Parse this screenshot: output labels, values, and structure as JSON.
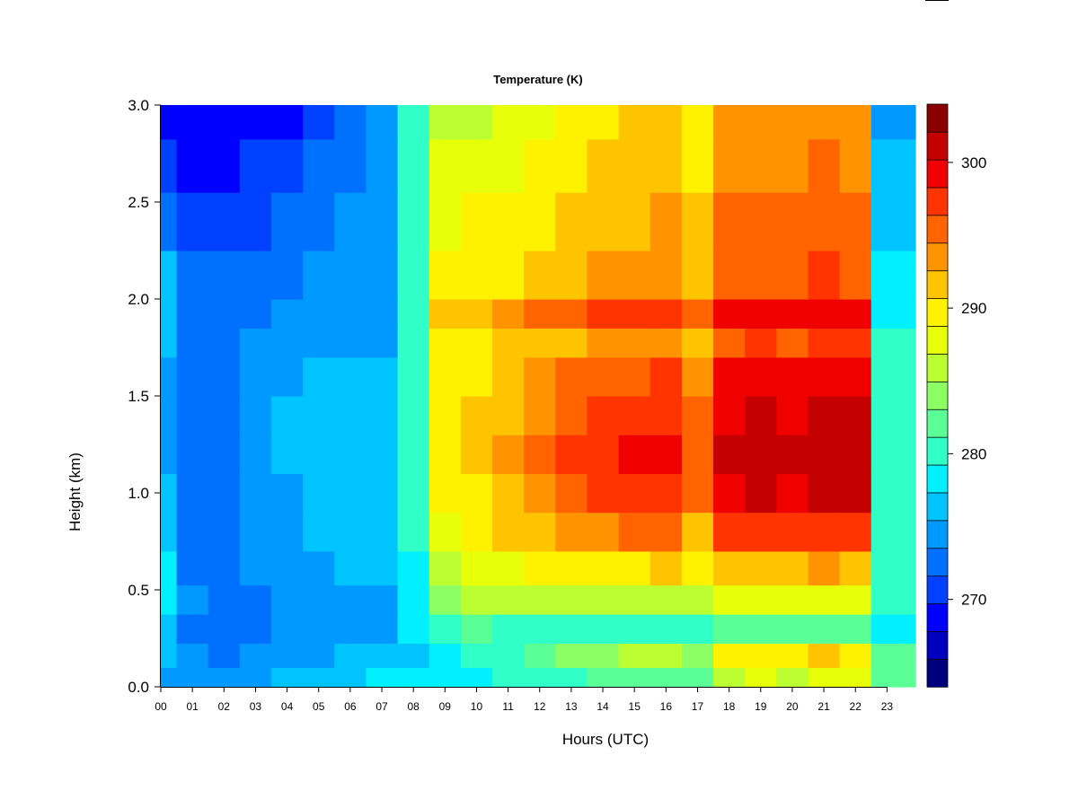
{
  "chart_data": {
    "type": "heatmap",
    "title": "Temperature (K)",
    "xlabel": "Hours (UTC)",
    "ylabel": "Height (km)",
    "xlim": [
      0,
      23.9
    ],
    "ylim": [
      0,
      3.0
    ],
    "x_ticks": [
      0,
      1,
      2,
      3,
      4,
      5,
      6,
      7,
      8,
      9,
      10,
      11,
      12,
      13,
      14,
      15,
      16,
      17,
      18,
      19,
      20,
      21,
      22,
      23
    ],
    "x_tick_labels": [
      "00",
      "01",
      "02",
      "03",
      "04",
      "05",
      "06",
      "07",
      "08",
      "09",
      "10",
      "11",
      "12",
      "13",
      "14",
      "15",
      "16",
      "17",
      "18",
      "19",
      "20",
      "21",
      "22",
      "23"
    ],
    "y_ticks": [
      0.0,
      0.5,
      1.0,
      1.5,
      2.0,
      2.5,
      3.0
    ],
    "y_tick_labels": [
      "0.0",
      "0.5",
      "1.0",
      "1.5",
      "2.0",
      "2.5",
      "3.0"
    ],
    "colorbar": {
      "min": 264,
      "max": 304,
      "ticks": [
        270,
        280,
        290,
        300
      ],
      "tick_labels": [
        "270",
        "280",
        "290",
        "300"
      ],
      "colors": [
        "#00007F",
        "#0000BF",
        "#0000FF",
        "#0040FF",
        "#0070FF",
        "#0099FF",
        "#00C4FF",
        "#00F0FF",
        "#30FFC8",
        "#5AFF96",
        "#8CFF64",
        "#BBFF32",
        "#E8FF0A",
        "#FFF200",
        "#FFC400",
        "#FF9400",
        "#FF6400",
        "#FF3400",
        "#F00000",
        "#C40000",
        "#8A0000"
      ]
    },
    "grid": false,
    "hours": [
      0,
      1,
      2,
      3,
      4,
      5,
      6,
      7,
      8,
      9,
      10,
      11,
      12,
      13,
      14,
      15,
      16,
      17,
      18,
      19,
      20,
      21,
      22,
      23
    ],
    "heights_km": [
      0.05,
      0.15,
      0.3,
      0.45,
      0.6,
      0.8,
      1.0,
      1.2,
      1.4,
      1.6,
      1.8,
      1.9,
      2.1,
      2.4,
      2.7,
      2.95
    ],
    "temperature_K": [
      [
        274.5,
        275.5,
        276.5,
        278.5,
        277.5,
        277.0,
        276.0,
        274.0,
        274.5,
        275.0,
        276.5,
        277.0,
        276.0,
        273.0,
        271.0,
        269.5
      ],
      [
        274.0,
        274.0,
        273.5,
        274.0,
        273.5,
        273.5,
        273.0,
        273.0,
        273.5,
        273.5,
        273.0,
        272.5,
        272.5,
        271.0,
        269.5,
        268.0
      ],
      [
        274.0,
        273.5,
        273.0,
        273.0,
        273.5,
        273.5,
        273.5,
        273.5,
        273.5,
        273.5,
        273.0,
        273.0,
        272.5,
        271.0,
        269.5,
        268.0
      ],
      [
        275.0,
        274.0,
        273.5,
        273.5,
        274.0,
        274.5,
        274.5,
        275.0,
        275.0,
        274.5,
        274.0,
        273.5,
        273.0,
        271.5,
        270.0,
        268.5
      ],
      [
        275.5,
        274.5,
        274.0,
        274.0,
        274.5,
        275.0,
        275.0,
        275.5,
        275.5,
        275.0,
        274.5,
        274.0,
        273.5,
        272.5,
        271.0,
        269.5
      ],
      [
        276.5,
        275.0,
        274.5,
        274.5,
        275.0,
        275.5,
        276.0,
        276.0,
        276.0,
        275.5,
        275.0,
        274.5,
        274.0,
        273.5,
        272.5,
        271.0
      ],
      [
        277.0,
        275.5,
        275.0,
        275.0,
        275.5,
        276.0,
        276.0,
        276.0,
        276.0,
        275.5,
        275.0,
        274.5,
        274.5,
        274.0,
        273.5,
        272.5
      ],
      [
        277.5,
        276.0,
        275.0,
        275.0,
        275.5,
        276.0,
        276.0,
        276.0,
        276.0,
        275.5,
        275.0,
        275.0,
        274.5,
        274.5,
        274.5,
        274.0
      ],
      [
        278.0,
        277.0,
        277.5,
        278.5,
        279.0,
        280.0,
        280.5,
        281.0,
        281.0,
        281.0,
        280.5,
        280.0,
        280.0,
        280.0,
        280.0,
        279.5
      ],
      [
        278.5,
        278.5,
        281.0,
        284.0,
        286.0,
        287.5,
        289.0,
        290.0,
        290.0,
        290.0,
        290.0,
        291.0,
        289.5,
        288.5,
        287.0,
        285.5
      ],
      [
        279.0,
        279.5,
        281.5,
        285.0,
        288.0,
        289.5,
        290.5,
        291.0,
        291.0,
        290.5,
        290.5,
        292.0,
        290.0,
        289.0,
        287.5,
        286.0
      ],
      [
        279.5,
        280.5,
        281.0,
        285.0,
        288.5,
        291.0,
        292.5,
        293.0,
        292.5,
        291.5,
        291.0,
        293.0,
        290.5,
        289.5,
        288.5,
        287.0
      ],
      [
        280.5,
        283.0,
        281.0,
        285.5,
        289.0,
        292.0,
        294.0,
        295.0,
        294.0,
        293.0,
        291.5,
        294.5,
        291.0,
        290.0,
        289.5,
        288.5
      ],
      [
        281.0,
        284.0,
        281.0,
        286.0,
        289.5,
        293.0,
        296.0,
        297.0,
        296.0,
        294.5,
        292.5,
        296.0,
        292.0,
        291.0,
        290.0,
        289.5
      ],
      [
        281.5,
        284.5,
        281.0,
        286.0,
        290.0,
        294.0,
        297.0,
        298.0,
        297.0,
        295.5,
        293.0,
        297.0,
        293.0,
        292.0,
        291.0,
        290.5
      ],
      [
        282.0,
        285.0,
        281.0,
        286.5,
        290.5,
        294.5,
        297.5,
        298.5,
        297.5,
        296.0,
        293.5,
        297.5,
        293.5,
        292.5,
        291.5,
        291.0
      ],
      [
        282.5,
        285.5,
        281.0,
        286.5,
        291.0,
        295.0,
        298.0,
        299.0,
        298.0,
        296.5,
        294.0,
        298.0,
        294.0,
        293.0,
        292.0,
        291.5
      ],
      [
        283.0,
        284.5,
        281.0,
        286.0,
        289.0,
        292.0,
        294.5,
        295.5,
        295.0,
        293.5,
        292.0,
        295.0,
        292.5,
        291.0,
        290.0,
        289.5
      ],
      [
        286.0,
        289.0,
        282.0,
        287.5,
        292.0,
        296.5,
        300.0,
        301.0,
        300.0,
        298.5,
        296.0,
        299.0,
        295.5,
        294.5,
        293.5,
        293.0
      ],
      [
        287.0,
        290.0,
        282.0,
        288.0,
        292.5,
        297.0,
        300.5,
        301.5,
        300.5,
        299.0,
        296.5,
        299.5,
        296.0,
        295.0,
        294.0,
        293.0
      ],
      [
        286.0,
        289.0,
        282.0,
        287.5,
        292.0,
        296.5,
        300.0,
        301.0,
        300.0,
        298.5,
        296.0,
        299.0,
        295.5,
        294.5,
        293.5,
        293.0
      ],
      [
        288.0,
        291.0,
        282.5,
        288.5,
        293.5,
        298.0,
        301.0,
        302.0,
        301.0,
        299.5,
        297.0,
        299.5,
        296.5,
        295.5,
        294.5,
        294.0
      ],
      [
        287.0,
        290.0,
        282.0,
        288.0,
        292.5,
        297.0,
        300.5,
        301.5,
        300.5,
        299.0,
        296.5,
        299.0,
        296.0,
        295.0,
        294.0,
        293.5
      ],
      [
        282.0,
        281.5,
        279.0,
        280.0,
        280.5,
        281.0,
        281.0,
        281.0,
        280.5,
        280.0,
        279.5,
        279.0,
        278.0,
        277.0,
        276.0,
        275.0
      ]
    ]
  }
}
